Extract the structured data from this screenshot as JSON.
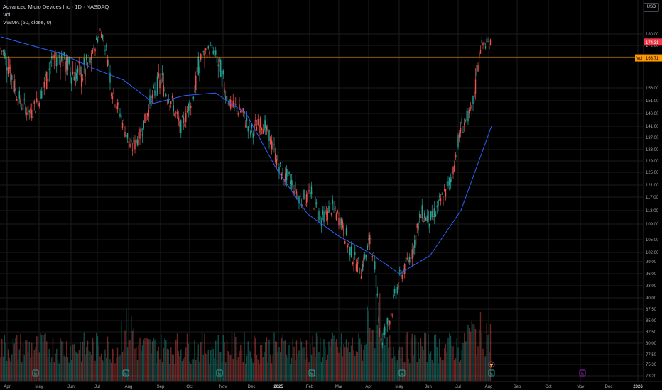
{
  "title": "Advanced Micro Devices Inc · 1D · NASDAQ",
  "legend": {
    "volume": "Vol",
    "indicator": "VWMA (50, close, 0)"
  },
  "currency": "USD",
  "colors": {
    "background": "#000000",
    "up": "#26a69a",
    "down": "#ef5350",
    "vwma": "#2962ff",
    "last_price_tag": "#f23645",
    "vwma_tag": "#ff9800",
    "grid": "#1c1c1c",
    "axis_text": "#a6a6a6"
  },
  "chart_data": {
    "type": "candlestick",
    "symbol": "AMD",
    "exchange": "NASDAQ",
    "interval": "1D",
    "x_axis_labels": [
      "Apr",
      "May",
      "Jun",
      "Jul",
      "Aug",
      "Sep",
      "Oct",
      "Nov",
      "Dec",
      "2025",
      "Feb",
      "Mar",
      "Apr",
      "May",
      "Jun",
      "Jul",
      "Aug",
      "Sep",
      "Oct",
      "Nov",
      "Dec",
      "2026"
    ],
    "y_axis": {
      "scale": "log",
      "tick_labels": [
        "180.00",
        "172.00",
        "164.00",
        "156.00",
        "151.00",
        "146.00",
        "141.00",
        "137.00",
        "133.00",
        "129.00",
        "125.00",
        "121.00",
        "117.00",
        "113.00",
        "109.00",
        "105.00",
        "102.00",
        "99.00",
        "96.00",
        "93.00",
        "90.00",
        "87.50",
        "85.00",
        "82.50",
        "80.00",
        "77.50",
        "75.30",
        "73.20"
      ]
    },
    "last_price": {
      "value": 174.31,
      "label": "174.31"
    },
    "vwma_tag": {
      "name": "Vol",
      "value": 163.71,
      "label": "163.71"
    },
    "close_path": [
      [
        "Apr",
        170
      ],
      [
        "Apr",
        160
      ],
      [
        "Apr",
        150
      ],
      [
        "May",
        146
      ],
      [
        "May",
        153
      ],
      [
        "May",
        163
      ],
      [
        "Jun",
        165
      ],
      [
        "Jun",
        160
      ],
      [
        "Jun",
        159
      ],
      [
        "Jul",
        163
      ],
      [
        "Jul",
        183
      ],
      [
        "Jul",
        157
      ],
      [
        "Aug",
        145
      ],
      [
        "Aug",
        133
      ],
      [
        "Aug",
        139
      ],
      [
        "Aug",
        151
      ],
      [
        "Sep",
        158
      ],
      [
        "Sep",
        151
      ],
      [
        "Sep",
        140
      ],
      [
        "Sep",
        151
      ],
      [
        "Oct",
        164
      ],
      [
        "Oct",
        170
      ],
      [
        "Oct",
        159
      ],
      [
        "Nov",
        149
      ],
      [
        "Nov",
        147
      ],
      [
        "Nov",
        139
      ],
      [
        "Dec",
        143
      ],
      [
        "Dec",
        136
      ],
      [
        "Dec",
        125
      ],
      [
        "2025",
        122
      ],
      [
        "2025",
        116
      ],
      [
        "Feb",
        118
      ],
      [
        "Feb",
        110
      ],
      [
        "Feb",
        114
      ],
      [
        "Mar",
        110
      ],
      [
        "Mar",
        101
      ],
      [
        "Mar",
        97
      ],
      [
        "Apr",
        106
      ],
      [
        "Apr",
        80
      ],
      [
        "Apr",
        87
      ],
      [
        "May",
        96
      ],
      [
        "May",
        101
      ],
      [
        "Jun",
        112
      ],
      [
        "Jun",
        110
      ],
      [
        "Jun",
        116
      ],
      [
        "Jul",
        123
      ],
      [
        "Jul",
        141
      ],
      [
        "Jul",
        146
      ],
      [
        "Aug",
        172
      ],
      [
        "Aug",
        174.31
      ]
    ],
    "vwma_path": [
      [
        "Apr",
        178
      ],
      [
        "May",
        172
      ],
      [
        "Jun",
        166
      ],
      [
        "Jul",
        161
      ],
      [
        "Aug",
        158
      ],
      [
        "Sep",
        150
      ],
      [
        "Oct",
        153
      ],
      [
        "Nov",
        154
      ],
      [
        "Dec",
        146
      ],
      [
        "2025",
        126
      ],
      [
        "Feb",
        112
      ],
      [
        "Mar",
        106
      ],
      [
        "Apr",
        102
      ],
      [
        "May",
        96
      ],
      [
        "Jun",
        101
      ],
      [
        "Jul",
        113
      ],
      [
        "Aug",
        141
      ]
    ],
    "event_markers": [
      {
        "label": "E",
        "month": "May"
      },
      {
        "label": "E",
        "month": "Aug"
      },
      {
        "label": "E",
        "month": "Nov"
      },
      {
        "label": "E",
        "month": "Feb"
      },
      {
        "label": "E",
        "month": "May"
      },
      {
        "label": "E",
        "month": "Aug"
      },
      {
        "label": "E",
        "month": "Nov",
        "upcoming": true
      }
    ],
    "split_marker": {
      "label": "⚡",
      "month": "Aug"
    }
  }
}
